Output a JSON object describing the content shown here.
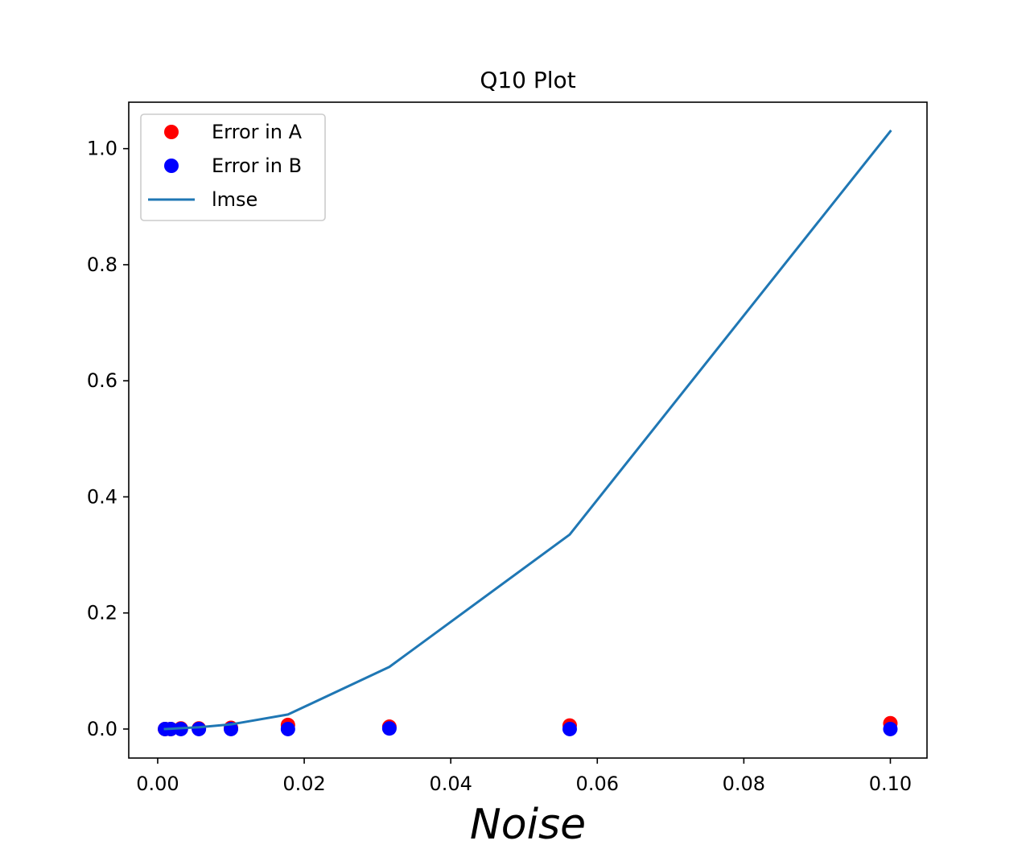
{
  "chart_data": {
    "type": "scatter",
    "title": "Q10 Plot",
    "xlabel": "Noise",
    "ylabel": "",
    "xlim": [
      -0.00395,
      0.105
    ],
    "ylim": [
      -0.05,
      1.08
    ],
    "xticks": [
      0.0,
      0.02,
      0.04,
      0.06,
      0.08,
      0.1
    ],
    "xtick_labels": [
      "0.00",
      "0.02",
      "0.04",
      "0.06",
      "0.08",
      "0.10"
    ],
    "yticks": [
      0.0,
      0.2,
      0.4,
      0.6,
      0.8,
      1.0
    ],
    "ytick_labels": [
      "0.0",
      "0.2",
      "0.4",
      "0.6",
      "0.8",
      "1.0"
    ],
    "grid": false,
    "legend_position": "top-left",
    "x": [
      0.001,
      0.00178,
      0.00316,
      0.00562,
      0.01,
      0.01778,
      0.03162,
      0.05623,
      0.1
    ],
    "series": [
      {
        "name": "Error in A",
        "kind": "scatter",
        "color": "#ff0000",
        "values": [
          0.0,
          0.0,
          0.001,
          0.001,
          0.002,
          0.007,
          0.004,
          0.006,
          0.01
        ]
      },
      {
        "name": "Error in B",
        "kind": "scatter",
        "color": "#0000ff",
        "values": [
          0.0,
          0.0,
          0.0,
          0.0,
          0.0,
          0.0,
          0.001,
          0.0,
          0.0
        ]
      },
      {
        "name": "lmse",
        "kind": "line",
        "color": "#1f77b4",
        "values": [
          0.0,
          0.0005,
          0.0015,
          0.003,
          0.008,
          0.025,
          0.107,
          0.335,
          1.03
        ]
      }
    ]
  }
}
